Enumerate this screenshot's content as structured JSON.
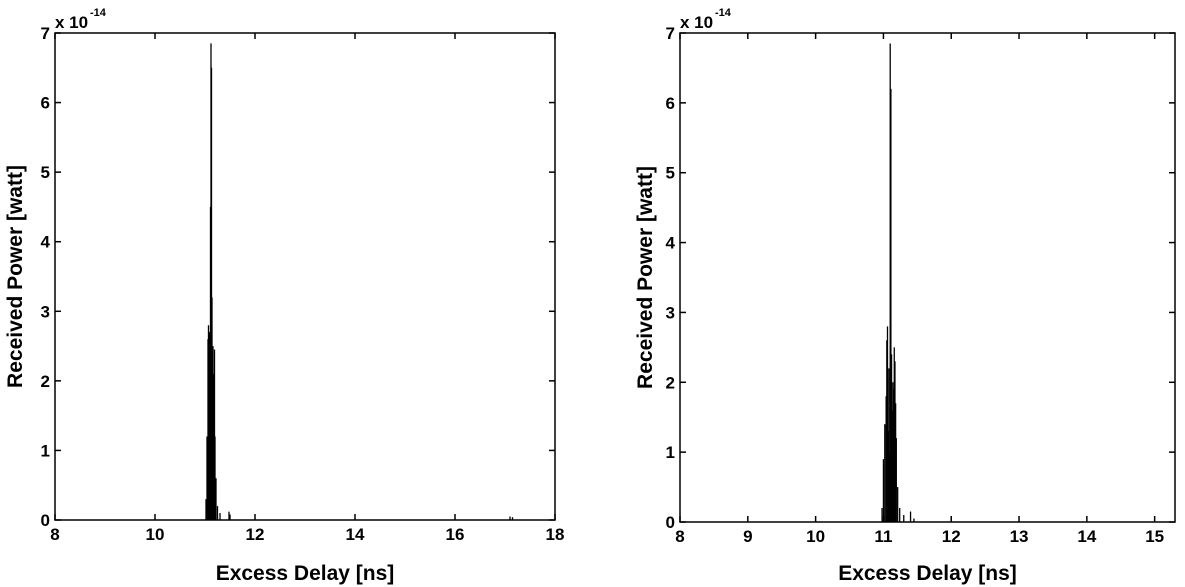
{
  "chart_data": [
    {
      "type": "stem",
      "xlabel": "Excess Delay [ns]",
      "ylabel": "Received Power [watt]",
      "y_scale_label": {
        "base": "x 10",
        "exponent": "-14"
      },
      "color": "#000000",
      "xlim": [
        8,
        18
      ],
      "xticks": [
        8,
        10,
        12,
        14,
        16,
        18
      ],
      "ylim": [
        0,
        7
      ],
      "yticks": [
        0,
        1,
        2,
        3,
        4,
        5,
        6,
        7
      ],
      "x": [
        11.02,
        11.04,
        11.06,
        11.07,
        11.08,
        11.09,
        11.1,
        11.11,
        11.12,
        11.13,
        11.14,
        11.15,
        11.16,
        11.17,
        11.18,
        11.19,
        11.2,
        11.22,
        11.25,
        11.3,
        11.48,
        11.5,
        17.1,
        17.15
      ],
      "values": [
        0.3,
        1.2,
        2.6,
        2.8,
        2.2,
        2.7,
        1.9,
        4.5,
        6.85,
        6.5,
        3.2,
        2.4,
        2.5,
        2.1,
        1.5,
        2.45,
        1.2,
        0.6,
        0.2,
        0.1,
        0.12,
        0.08,
        0.05,
        0.04
      ]
    },
    {
      "type": "stem",
      "xlabel": "Excess Delay [ns]",
      "ylabel": "Received Power [watt]",
      "y_scale_label": {
        "base": "x 10",
        "exponent": "-14"
      },
      "color": "#000000",
      "xlim": [
        8,
        15.3
      ],
      "xticks": [
        8,
        9,
        10,
        11,
        12,
        13,
        14,
        15
      ],
      "ylim": [
        0,
        7
      ],
      "yticks": [
        0,
        1,
        2,
        3,
        4,
        5,
        6,
        7
      ],
      "x": [
        10.98,
        11.0,
        11.02,
        11.04,
        11.05,
        11.06,
        11.07,
        11.08,
        11.09,
        11.1,
        11.11,
        11.12,
        11.13,
        11.14,
        11.15,
        11.16,
        11.17,
        11.18,
        11.19,
        11.21,
        11.24,
        11.3,
        11.4,
        11.45
      ],
      "values": [
        0.2,
        0.9,
        1.4,
        1.8,
        2.6,
        2.8,
        1.3,
        2.2,
        1.0,
        6.85,
        6.2,
        2.4,
        1.6,
        2.0,
        1.9,
        2.5,
        2.3,
        1.7,
        1.2,
        0.5,
        0.2,
        0.1,
        0.15,
        0.05
      ]
    }
  ]
}
